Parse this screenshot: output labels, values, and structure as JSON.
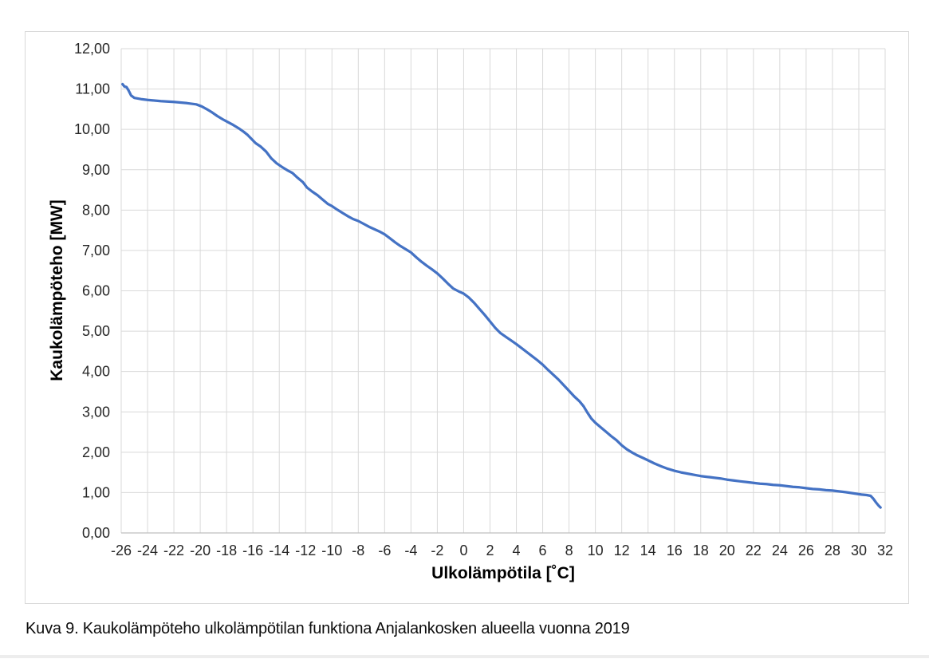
{
  "figure": {
    "caption": "Kuva 9. Kaukolämpöteho ulkolämpötilan funktiona Anjalankosken alueella vuonna 2019"
  },
  "style": {
    "line_color": "#4472C4",
    "grid_color": "#d9d9d9",
    "axis_line_color": "#bfbfbf",
    "tick_color": "#262626",
    "chart_border_color": "#d9d9d9",
    "background": "#ffffff"
  },
  "chart_data": {
    "type": "line",
    "title": "",
    "xlabel": "Ulkolämpötila [˚C]",
    "ylabel": "Kaukolämpöteho [MW]",
    "xlim": [
      -26,
      32
    ],
    "ylim": [
      0,
      12
    ],
    "grid": true,
    "legend_position": "none",
    "x_ticks": [
      -26,
      -24,
      -22,
      -20,
      -18,
      -16,
      -14,
      -12,
      -10,
      -8,
      -6,
      -4,
      -2,
      0,
      2,
      4,
      6,
      8,
      10,
      12,
      14,
      16,
      18,
      20,
      22,
      24,
      26,
      28,
      30,
      32
    ],
    "y_ticks": [
      {
        "value": 0,
        "label": "0,00"
      },
      {
        "value": 1,
        "label": "1,00"
      },
      {
        "value": 2,
        "label": "2,00"
      },
      {
        "value": 3,
        "label": "3,00"
      },
      {
        "value": 4,
        "label": "4,00"
      },
      {
        "value": 5,
        "label": "5,00"
      },
      {
        "value": 6,
        "label": "6,00"
      },
      {
        "value": 7,
        "label": "7,00"
      },
      {
        "value": 8,
        "label": "8,00"
      },
      {
        "value": 9,
        "label": "9,00"
      },
      {
        "value": 10,
        "label": "10,00"
      },
      {
        "value": 11,
        "label": "11,00"
      },
      {
        "value": 12,
        "label": "12,00"
      }
    ],
    "series": [
      {
        "name": "Kaukolämpöteho",
        "color": "#4472C4",
        "points": [
          [
            -25.9,
            11.12
          ],
          [
            -25.75,
            11.06
          ],
          [
            -25.6,
            11.05
          ],
          [
            -25.45,
            10.97
          ],
          [
            -25.25,
            10.84
          ],
          [
            -25.0,
            10.78
          ],
          [
            -24.5,
            10.75
          ],
          [
            -24.0,
            10.73
          ],
          [
            -23.0,
            10.7
          ],
          [
            -22.0,
            10.68
          ],
          [
            -21.0,
            10.65
          ],
          [
            -20.3,
            10.62
          ],
          [
            -19.9,
            10.57
          ],
          [
            -19.5,
            10.5
          ],
          [
            -19.1,
            10.42
          ],
          [
            -18.7,
            10.33
          ],
          [
            -18.3,
            10.25
          ],
          [
            -17.9,
            10.18
          ],
          [
            -17.5,
            10.11
          ],
          [
            -17.1,
            10.03
          ],
          [
            -16.7,
            9.94
          ],
          [
            -16.4,
            9.86
          ],
          [
            -16.1,
            9.76
          ],
          [
            -15.8,
            9.66
          ],
          [
            -15.4,
            9.57
          ],
          [
            -15.0,
            9.45
          ],
          [
            -14.6,
            9.28
          ],
          [
            -14.2,
            9.16
          ],
          [
            -13.8,
            9.07
          ],
          [
            -13.4,
            8.99
          ],
          [
            -13.0,
            8.92
          ],
          [
            -12.6,
            8.8
          ],
          [
            -12.2,
            8.69
          ],
          [
            -11.9,
            8.56
          ],
          [
            -11.5,
            8.46
          ],
          [
            -11.1,
            8.37
          ],
          [
            -10.7,
            8.26
          ],
          [
            -10.3,
            8.15
          ],
          [
            -10.0,
            8.1
          ],
          [
            -9.6,
            8.01
          ],
          [
            -9.2,
            7.93
          ],
          [
            -8.8,
            7.85
          ],
          [
            -8.4,
            7.78
          ],
          [
            -8.0,
            7.73
          ],
          [
            -7.6,
            7.66
          ],
          [
            -7.2,
            7.59
          ],
          [
            -6.8,
            7.53
          ],
          [
            -6.4,
            7.47
          ],
          [
            -6.0,
            7.4
          ],
          [
            -5.6,
            7.3
          ],
          [
            -5.2,
            7.2
          ],
          [
            -4.8,
            7.11
          ],
          [
            -4.4,
            7.03
          ],
          [
            -4.0,
            6.95
          ],
          [
            -3.6,
            6.83
          ],
          [
            -3.2,
            6.72
          ],
          [
            -2.8,
            6.62
          ],
          [
            -2.4,
            6.53
          ],
          [
            -2.0,
            6.43
          ],
          [
            -1.6,
            6.31
          ],
          [
            -1.2,
            6.18
          ],
          [
            -0.8,
            6.06
          ],
          [
            -0.4,
            5.99
          ],
          [
            0.0,
            5.93
          ],
          [
            0.4,
            5.83
          ],
          [
            0.8,
            5.7
          ],
          [
            1.2,
            5.55
          ],
          [
            1.6,
            5.4
          ],
          [
            2.0,
            5.24
          ],
          [
            2.4,
            5.08
          ],
          [
            2.8,
            4.95
          ],
          [
            3.2,
            4.86
          ],
          [
            3.6,
            4.77
          ],
          [
            4.0,
            4.68
          ],
          [
            4.4,
            4.58
          ],
          [
            4.8,
            4.48
          ],
          [
            5.2,
            4.38
          ],
          [
            5.6,
            4.28
          ],
          [
            6.0,
            4.17
          ],
          [
            6.4,
            4.04
          ],
          [
            6.8,
            3.92
          ],
          [
            7.2,
            3.8
          ],
          [
            7.6,
            3.66
          ],
          [
            8.0,
            3.52
          ],
          [
            8.4,
            3.38
          ],
          [
            8.8,
            3.26
          ],
          [
            9.1,
            3.14
          ],
          [
            9.4,
            2.98
          ],
          [
            9.7,
            2.83
          ],
          [
            10.0,
            2.73
          ],
          [
            10.4,
            2.62
          ],
          [
            10.8,
            2.51
          ],
          [
            11.2,
            2.4
          ],
          [
            11.6,
            2.3
          ],
          [
            12.0,
            2.17
          ],
          [
            12.4,
            2.07
          ],
          [
            12.8,
            1.99
          ],
          [
            13.2,
            1.92
          ],
          [
            13.6,
            1.86
          ],
          [
            14.0,
            1.8
          ],
          [
            14.5,
            1.72
          ],
          [
            15.0,
            1.65
          ],
          [
            15.5,
            1.59
          ],
          [
            16.0,
            1.54
          ],
          [
            16.5,
            1.5
          ],
          [
            17.0,
            1.47
          ],
          [
            17.5,
            1.44
          ],
          [
            18.0,
            1.41
          ],
          [
            18.5,
            1.39
          ],
          [
            19.0,
            1.37
          ],
          [
            19.5,
            1.35
          ],
          [
            20.0,
            1.32
          ],
          [
            20.5,
            1.3
          ],
          [
            21.0,
            1.28
          ],
          [
            21.5,
            1.26
          ],
          [
            22.0,
            1.24
          ],
          [
            22.5,
            1.22
          ],
          [
            23.0,
            1.21
          ],
          [
            23.5,
            1.19
          ],
          [
            24.0,
            1.18
          ],
          [
            24.5,
            1.16
          ],
          [
            25.0,
            1.14
          ],
          [
            25.5,
            1.13
          ],
          [
            26.0,
            1.11
          ],
          [
            26.5,
            1.09
          ],
          [
            27.0,
            1.08
          ],
          [
            27.5,
            1.06
          ],
          [
            28.0,
            1.05
          ],
          [
            28.5,
            1.03
          ],
          [
            29.0,
            1.01
          ],
          [
            29.4,
            0.99
          ],
          [
            29.8,
            0.97
          ],
          [
            30.2,
            0.95
          ],
          [
            30.6,
            0.94
          ],
          [
            30.9,
            0.92
          ],
          [
            31.1,
            0.85
          ],
          [
            31.3,
            0.76
          ],
          [
            31.5,
            0.68
          ],
          [
            31.65,
            0.63
          ]
        ]
      }
    ]
  }
}
